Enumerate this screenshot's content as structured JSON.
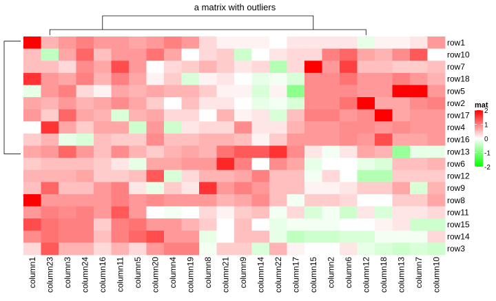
{
  "chart_data": {
    "type": "heatmap",
    "title": "a matrix with outliers",
    "rows": [
      "row1",
      "row10",
      "row7",
      "row18",
      "row5",
      "row2",
      "row17",
      "row4",
      "row16",
      "row13",
      "row6",
      "row12",
      "row9",
      "row8",
      "row11",
      "row15",
      "row14",
      "row3"
    ],
    "columns": [
      "column1",
      "column23",
      "column3",
      "column24",
      "column16",
      "column11",
      "column5",
      "column20",
      "column4",
      "column19",
      "column8",
      "column21",
      "column9",
      "column14",
      "column22",
      "column17",
      "column15",
      "column2",
      "column6",
      "column12",
      "column18",
      "column13",
      "column7",
      "column10"
    ],
    "values": [
      [
        2.0,
        0.6,
        0.8,
        1.0,
        0.8,
        0.8,
        0.7,
        0.8,
        1.0,
        0.8,
        0.3,
        0.1,
        0.1,
        0.1,
        0.0,
        0.2,
        0.2,
        0.2,
        0.2,
        -0.2,
        0.1,
        0.1,
        0.2,
        0.8
      ],
      [
        0.5,
        -0.5,
        0.7,
        1.2,
        0.5,
        0.8,
        0.8,
        1.1,
        0.7,
        0.0,
        0.3,
        0.4,
        -0.4,
        0.0,
        0.2,
        0.3,
        0.3,
        1.0,
        1.2,
        0.7,
        0.6,
        0.9,
        1.3,
        0.0
      ],
      [
        0.5,
        0.5,
        0.3,
        0.9,
        0.7,
        1.4,
        0.8,
        0.0,
        0.3,
        0.4,
        0.6,
        0.4,
        0.2,
        0.3,
        -0.6,
        0.3,
        2.0,
        0.8,
        1.5,
        0.5,
        0.5,
        0.4,
        0.4,
        0.5
      ],
      [
        1.6,
        0.8,
        0.7,
        1.0,
        0.6,
        1.0,
        0.7,
        0.1,
        0.4,
        -0.3,
        0.1,
        0.2,
        0.0,
        -0.2,
        -0.1,
        -0.3,
        0.9,
        0.9,
        1.1,
        0.8,
        0.8,
        1.0,
        0.8,
        0.6
      ],
      [
        -0.2,
        0.8,
        1.0,
        0.3,
        0.1,
        0.7,
        0.6,
        0.7,
        0.6,
        0.6,
        0.4,
        0.1,
        0.1,
        -0.3,
        0.1,
        -0.9,
        0.9,
        0.9,
        0.9,
        0.8,
        0.8,
        2.0,
        2.0,
        0.8
      ],
      [
        0.7,
        0.6,
        0.8,
        0.6,
        0.7,
        0.9,
        0.7,
        0.4,
        0.0,
        0.5,
        0.2,
        0.2,
        0.0,
        -0.2,
        -0.1,
        -0.3,
        0.9,
        0.9,
        1.1,
        2.0,
        0.7,
        0.7,
        0.9,
        1.0
      ],
      [
        0.8,
        0.4,
        1.2,
        0.7,
        0.6,
        -0.3,
        0.6,
        0.7,
        0.3,
        0.3,
        0.0,
        0.6,
        0.1,
        0.2,
        -0.3,
        0.5,
        1.0,
        1.0,
        0.8,
        0.9,
        2.0,
        0.7,
        0.8,
        0.8
      ],
      [
        0.0,
        1.6,
        0.7,
        0.4,
        0.7,
        0.7,
        -0.4,
        0.8,
        -0.4,
        0.2,
        0.3,
        0.3,
        0.9,
        0.2,
        0.2,
        0.6,
        0.8,
        0.8,
        0.9,
        0.9,
        0.8,
        0.9,
        0.8,
        0.8
      ],
      [
        0.4,
        0.6,
        -0.2,
        -0.3,
        0.5,
        0.4,
        0.4,
        0.9,
        0.5,
        0.5,
        0.6,
        0.6,
        0.5,
        0.1,
        0.4,
        0.8,
        0.8,
        0.8,
        0.9,
        0.8,
        1.4,
        0.7,
        0.7,
        0.8
      ],
      [
        0.7,
        0.8,
        1.2,
        0.8,
        0.5,
        0.9,
        0.6,
        0.4,
        0.6,
        0.7,
        0.6,
        1.1,
        1.3,
        1.3,
        1.6,
        0.9,
        0.2,
        -0.1,
        0.2,
        0.7,
        0.6,
        -0.8,
        -0.2,
        -0.2
      ],
      [
        0.4,
        0.5,
        0.5,
        0.5,
        0.4,
        0.2,
        -0.2,
        0.7,
        0.7,
        0.8,
        0.8,
        1.7,
        1.0,
        0.0,
        0.9,
        0.7,
        -0.2,
        0.0,
        0.0,
        -0.2,
        -0.3,
        0.5,
        0.5,
        0.6
      ],
      [
        0.6,
        0.6,
        0.6,
        0.7,
        0.4,
        0.4,
        0.5,
        1.3,
        -0.3,
        0.3,
        0.6,
        0.6,
        0.7,
        1.0,
        0.5,
        0.5,
        -0.1,
        0.3,
        0.0,
        -0.6,
        -0.6,
        0.4,
        0.4,
        0.4
      ],
      [
        0.5,
        1.2,
        0.5,
        0.5,
        0.8,
        1.0,
        0.2,
        -0.2,
        0.4,
        0.2,
        1.6,
        0.8,
        1.0,
        0.8,
        0.5,
        0.5,
        0.1,
        0.1,
        0.2,
        0.4,
        0.4,
        0.7,
        -0.3,
        0.6
      ],
      [
        2.0,
        0.8,
        0.8,
        0.8,
        0.8,
        1.0,
        0.8,
        0.9,
        0.8,
        0.8,
        0.8,
        0.6,
        0.7,
        0.9,
        0.5,
        -0.1,
        0.4,
        0.4,
        0.3,
        0.0,
        0.0,
        0.4,
        0.4,
        0.7
      ],
      [
        0.8,
        1.0,
        0.9,
        1.0,
        0.8,
        1.3,
        0.8,
        0.0,
        -0.1,
        0.0,
        0.3,
        0.1,
        0.4,
        0.5,
        -0.1,
        0.3,
        -0.3,
        -0.1,
        -0.4,
        0.2,
        -0.3,
        0.2,
        0.2,
        0.3
      ],
      [
        1.4,
        1.1,
        1.0,
        1.0,
        0.4,
        1.0,
        1.1,
        0.8,
        0.8,
        0.6,
        0.4,
        0.0,
        0.5,
        0.0,
        -0.2,
        -0.1,
        -0.1,
        -0.1,
        0.0,
        0.0,
        0.1,
        0.2,
        -0.4,
        -0.4
      ],
      [
        0.9,
        1.1,
        1.0,
        1.0,
        0.5,
        1.0,
        1.2,
        1.4,
        0.8,
        0.8,
        -0.2,
        0.0,
        0.5,
        0.5,
        -0.2,
        -0.5,
        -0.4,
        -0.4,
        -0.3,
        -0.3,
        -0.1,
        -0.1,
        -0.1,
        0.3
      ],
      [
        0.3,
        1.3,
        0.6,
        0.6,
        0.3,
        0.6,
        0.3,
        0.8,
        1.0,
        1.0,
        -0.1,
        0.4,
        0.4,
        -0.3,
        0.6,
        0.1,
        0.0,
        0.0,
        0.2,
        -0.2,
        -0.3,
        -0.4,
        -0.3,
        -0.4
      ]
    ],
    "legend": {
      "title": "mat",
      "ticks": [
        2,
        1,
        0,
        -1,
        -2
      ],
      "colors": {
        "high": "#ff0000",
        "mid": "#ffffff",
        "low": "#00ff00"
      },
      "range": [
        -2,
        2
      ],
      "placement": "right"
    },
    "row_dendrogram": {
      "groups": [
        {
          "first_row": 0,
          "last_row": 8,
          "tips": [
            0,
            8
          ]
        },
        {
          "first_row": 9,
          "last_row": 17,
          "tips": [
            9,
            17
          ]
        }
      ]
    },
    "column_dendrogram": {
      "groups": [
        {
          "first_col": 0,
          "last_col": 8,
          "tips": [
            1,
            6
          ]
        },
        {
          "first_col": 9,
          "last_col": 23,
          "tips": [
            10,
            19
          ]
        }
      ]
    }
  }
}
